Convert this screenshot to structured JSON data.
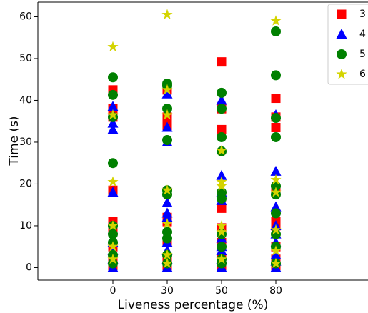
{
  "chart_data": {
    "type": "scatter",
    "x_label": "Liveness percentage (%)",
    "y_label": "Time (s)",
    "categories": [
      "0",
      "30",
      "50",
      "80"
    ],
    "ylim": [
      -3,
      63.5
    ],
    "yticks": [
      0,
      10,
      20,
      30,
      40,
      50,
      60
    ],
    "legend": "upper right",
    "series": [
      {
        "name": "3",
        "color": "#ff0000",
        "marker": "square",
        "values": [
          [
            42.5,
            38,
            36,
            18.5,
            11,
            9,
            5,
            2,
            0.5
          ],
          [
            43,
            42.5,
            36,
            34,
            18,
            12,
            11,
            6,
            2,
            0.5
          ],
          [
            49.2,
            38,
            33,
            17,
            14.2,
            9.5,
            6,
            2,
            0.5
          ],
          [
            40.5,
            36,
            33.5,
            18,
            11,
            10,
            5,
            2,
            0.5
          ]
        ]
      },
      {
        "name": "4",
        "color": "#0000ff",
        "marker": "triangle",
        "values": [
          [
            38.5,
            34.5,
            33,
            18,
            9,
            6,
            4,
            2,
            0
          ],
          [
            41.5,
            33.5,
            30,
            15.5,
            13,
            12,
            6,
            4,
            2,
            0
          ],
          [
            40,
            22,
            18,
            16,
            7,
            5,
            4,
            2,
            0
          ],
          [
            36.5,
            23,
            14.5,
            10,
            8,
            6,
            3,
            1.5,
            0
          ]
        ]
      },
      {
        "name": "5",
        "color": "#008000",
        "marker": "circle",
        "values": [
          [
            45.5,
            41.3,
            36,
            25,
            10,
            8,
            6,
            3,
            1
          ],
          [
            44,
            43.5,
            38,
            30.5,
            18.5,
            17.5,
            8.5,
            7,
            3,
            1
          ],
          [
            41.8,
            38,
            31.2,
            27.8,
            18,
            16.5,
            8,
            5,
            2,
            1
          ],
          [
            56.5,
            46,
            35.8,
            31.2,
            19.5,
            17.5,
            13,
            8,
            5,
            1
          ]
        ]
      },
      {
        "name": "6",
        "color": "#d4d400",
        "marker": "star",
        "values": [
          [
            52.8,
            36.5,
            20.5,
            10,
            5,
            2
          ],
          [
            60.5,
            42.5,
            36.5,
            18.5,
            10.5,
            3,
            1
          ],
          [
            28,
            20.5,
            19.5,
            10,
            8.5,
            2
          ],
          [
            59,
            21,
            18,
            9,
            4,
            1
          ]
        ]
      }
    ]
  }
}
